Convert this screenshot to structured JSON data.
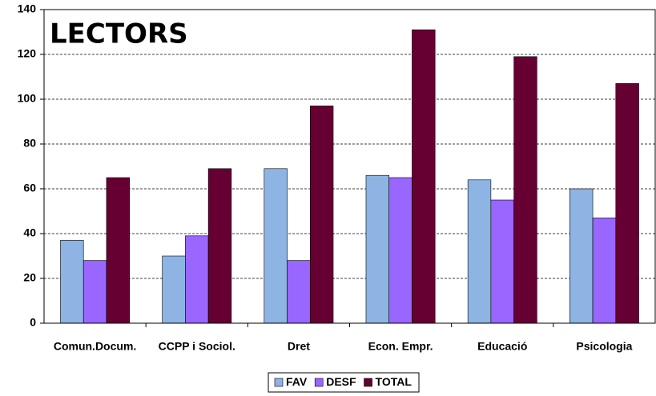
{
  "chart_data": {
    "type": "bar",
    "title": "LECTORS",
    "categories": [
      "Comun.Docum.",
      "CCPP i Sociol.",
      "Dret",
      "Econ. Empr.",
      "Educació",
      "Psicologia"
    ],
    "series": [
      {
        "name": "FAV",
        "color": "#8db4e2",
        "values": [
          37,
          30,
          69,
          66,
          64,
          60
        ]
      },
      {
        "name": "DESF",
        "color": "#9966ff",
        "values": [
          28,
          39,
          28,
          65,
          55,
          47
        ]
      },
      {
        "name": "TOTAL",
        "color": "#660033",
        "values": [
          65,
          69,
          97,
          131,
          119,
          107
        ]
      }
    ],
    "ylim": [
      0,
      140
    ],
    "yticks": [
      0,
      20,
      40,
      60,
      80,
      100,
      120,
      140
    ],
    "grid": true,
    "legend": "bottom"
  }
}
